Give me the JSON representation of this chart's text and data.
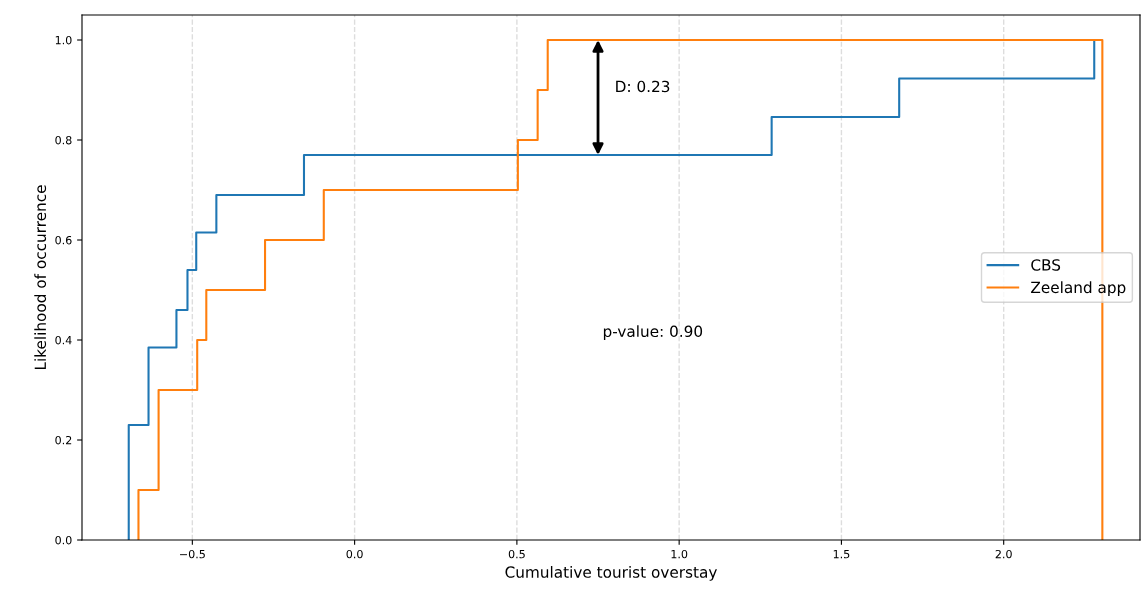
{
  "chart_data": {
    "type": "step",
    "xlabel": "Cumulative tourist overstay",
    "ylabel": "Likelihood of occurrence",
    "xlim": [
      -0.84,
      2.42
    ],
    "xticks": [
      {
        "value": -0.5,
        "label": "−0.5"
      },
      {
        "value": 0,
        "label": "0.0"
      },
      0.5,
      {
        "value": 1,
        "label": "1.0"
      },
      1.5,
      {
        "value": 2,
        "label": "2.0"
      }
    ],
    "ylim": [
      0,
      1.05
    ],
    "yticks": [
      {
        "value": 0,
        "label": "0.0"
      },
      0.2,
      0.4,
      0.6,
      0.8,
      {
        "value": 1,
        "label": "1.0"
      }
    ],
    "grid": "x",
    "line_style": "solid",
    "legend": "right",
    "series": [
      {
        "name": "CBS",
        "color": "#1f77b4",
        "x": [
          -0.696,
          -0.696,
          -0.635,
          -0.549,
          -0.515,
          -0.488,
          -0.426,
          -0.156,
          1.285,
          1.678,
          2.279,
          2.29
        ],
        "values": [
          0,
          0.23,
          0.385,
          0.46,
          0.54,
          0.615,
          0.69,
          0.77,
          0.846,
          0.923,
          1.0,
          1.0
        ]
      },
      {
        "name": "Zeeland app",
        "color": "#ff7f0e",
        "x": [
          -0.666,
          -0.666,
          -0.604,
          -0.485,
          -0.457,
          -0.276,
          -0.095,
          0.503,
          0.564,
          0.595,
          2.304,
          2.304
        ],
        "values": [
          0,
          0.1,
          0.3,
          0.4,
          0.5,
          0.6,
          0.7,
          0.8,
          0.9,
          1.0,
          0,
          0
        ]
      }
    ],
    "annotations": [
      {
        "text": "D: 0.23",
        "x": 0.75,
        "y": 1.0
      },
      "p-value: 0.90"
    ]
  }
}
